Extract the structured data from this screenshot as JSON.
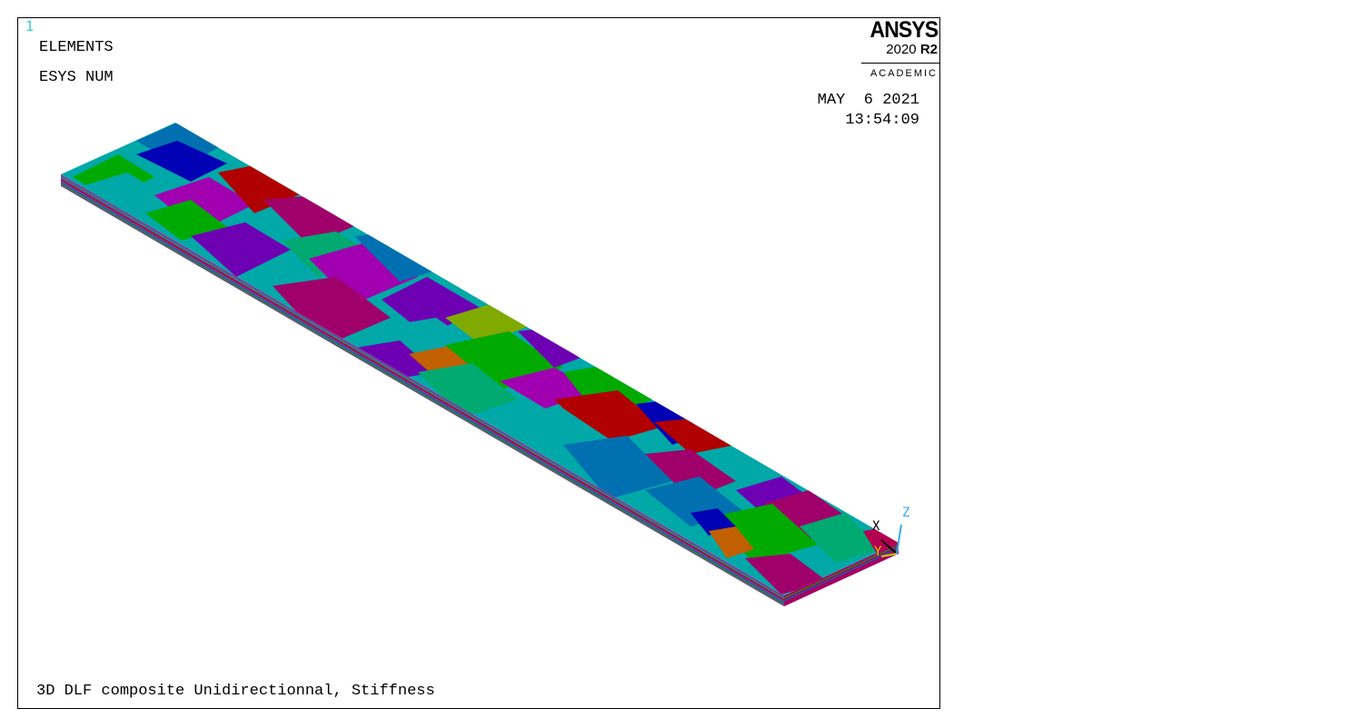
{
  "window": {
    "number": "1"
  },
  "labels": {
    "plot_type": "ELEMENTS",
    "esys": "ESYS NUM"
  },
  "timestamp": {
    "date": "MAY  6 2021",
    "time": "13:54:09"
  },
  "logo": {
    "brand": "ANSYS",
    "version_year": "2020",
    "version_release": "R2",
    "edition": "ACADEMIC"
  },
  "caption": "3D DLF composite Unidirectionnal, Stiffness",
  "triad": {
    "x": "X",
    "y": "Y",
    "z": "Z"
  },
  "colors": {
    "frame": "#000000",
    "window_number": "#33cccc",
    "axis_x": "#000000",
    "axis_y": "#cccc00",
    "axis_z": "#33aaee",
    "elements": [
      "#0070b0",
      "#0000b4",
      "#00a8a8",
      "#a000b0",
      "#b00000",
      "#a0006a",
      "#00aa00",
      "#6e00b4",
      "#00aa70",
      "#80aa00",
      "#c06000",
      "#b40050"
    ]
  }
}
